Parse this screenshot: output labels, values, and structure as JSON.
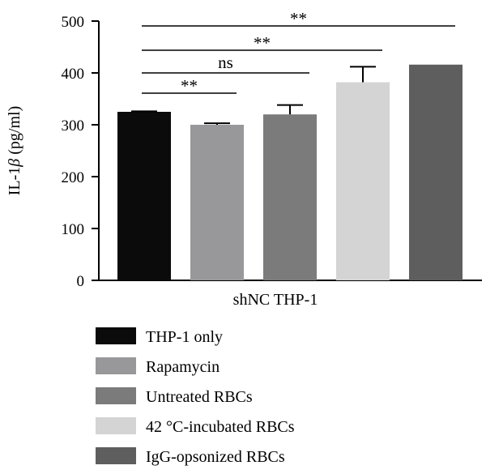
{
  "chart_data": {
    "type": "bar",
    "title": "",
    "xlabel": "shNC THP-1",
    "ylabel": "IL-1β (pg/ml)",
    "ylabel_parts": {
      "prefix": "IL-1",
      "greek": "β",
      "suffix": " (pg/ml)"
    },
    "ylim": [
      0,
      500
    ],
    "yticks": [
      0,
      100,
      200,
      300,
      400,
      500
    ],
    "grid": false,
    "legend_position": "bottom",
    "series": [
      {
        "name": "THP-1 only",
        "value": 325,
        "error": 1,
        "color": "#0b0b0b"
      },
      {
        "name": "Rapamycin",
        "value": 300,
        "error": 3,
        "color": "#98989a"
      },
      {
        "name": "Untreated RBCs",
        "value": 320,
        "error": 18,
        "color": "#7b7b7b"
      },
      {
        "name": "42 °C-incubated RBCs",
        "value": 382,
        "error": 30,
        "color": "#d4d4d4"
      },
      {
        "name": "IgG-opsonized RBCs",
        "value": 416,
        "error": 0,
        "color": "#5e5e5e"
      }
    ],
    "comparisons": [
      {
        "from": 0,
        "to": 1,
        "label": "**"
      },
      {
        "from": 0,
        "to": 2,
        "label": "ns"
      },
      {
        "from": 0,
        "to": 3,
        "label": "**"
      },
      {
        "from": 0,
        "to": 4,
        "label": "**"
      }
    ]
  }
}
